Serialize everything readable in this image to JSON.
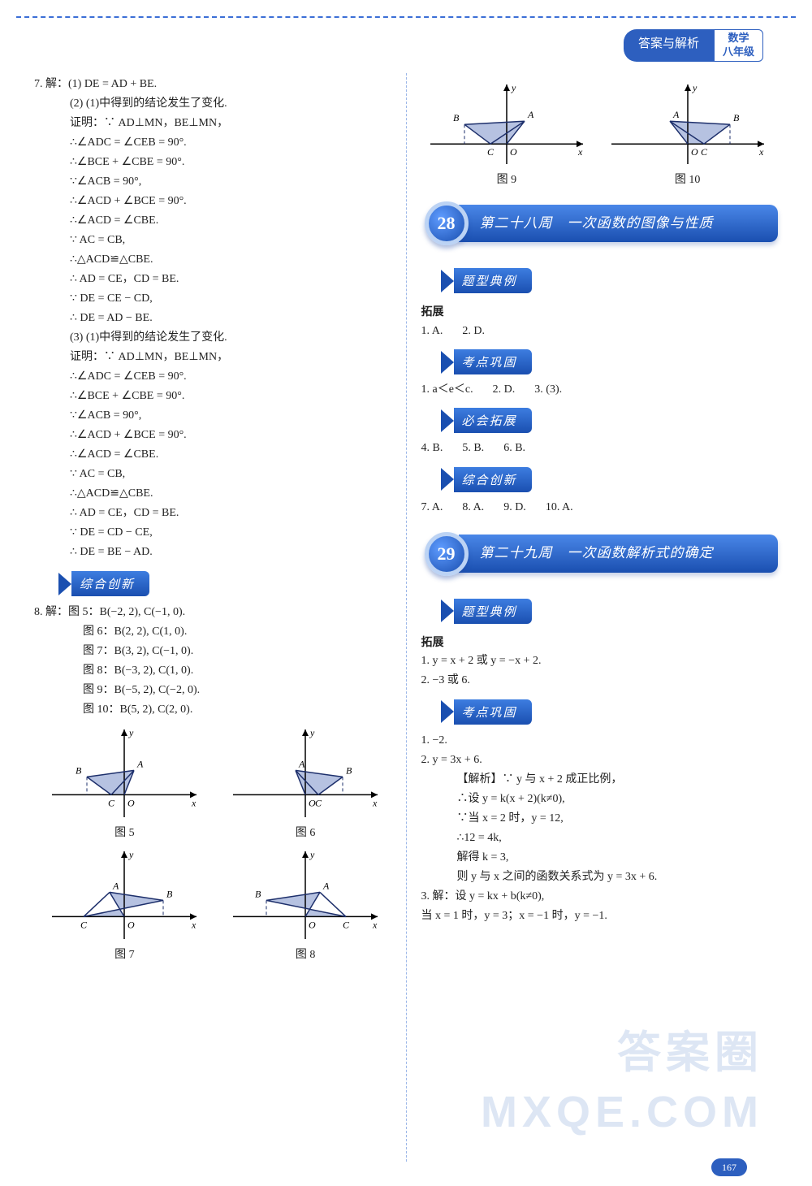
{
  "header": {
    "tab": "答案与解析",
    "subject": "数学",
    "grade": "八年级"
  },
  "page_number": "167",
  "watermarks": {
    "top": "答案圈",
    "bottom": "MXQE.COM"
  },
  "left": {
    "q7": {
      "head": "7.  解：(1) DE = AD + BE.",
      "p2": "(2) (1)中得到的结论发生了变化.",
      "proof2": [
        "证明：∵ AD⊥MN，BE⊥MN，",
        "∴∠ADC = ∠CEB = 90°.",
        "∴∠BCE + ∠CBE = 90°.",
        "∵∠ACB = 90°,",
        "∴∠ACD + ∠BCE = 90°.",
        "∴∠ACD = ∠CBE.",
        "∵ AC = CB,",
        "∴△ACD≌△CBE.",
        "∴ AD = CE，CD = BE.",
        "∵ DE = CE − CD,",
        "∴ DE = AD − BE."
      ],
      "p3": "(3) (1)中得到的结论发生了变化.",
      "proof3": [
        "证明：∵ AD⊥MN，BE⊥MN，",
        "∴∠ADC = ∠CEB = 90°.",
        "∴∠BCE + ∠CBE = 90°.",
        "∵∠ACB = 90°,",
        "∴∠ACD + ∠BCE = 90°.",
        "∴∠ACD = ∠CBE.",
        "∵ AC = CB,",
        "∴△ACD≌△CBE.",
        "∴ AD = CE，CD = BE.",
        "∵ DE = CD − CE,",
        "∴ DE = BE − AD."
      ]
    },
    "section_innov": "综合创新",
    "q8": {
      "head": "8.  解：图 5：B(−2, 2), C(−1, 0).",
      "lines": [
        "图 6：B(2, 2), C(1, 0).",
        "图 7：B(3, 2), C(−1, 0).",
        "图 8：B(−3, 2), C(1, 0).",
        "图 9：B(−5, 2), C(−2, 0).",
        "图 10：B(5, 2), C(2, 0)."
      ]
    },
    "figures": {
      "row1": [
        {
          "cap": "图 5",
          "A": [
            12,
            -30
          ],
          "B": [
            -46,
            -22
          ],
          "C": [
            -16,
            0
          ],
          "B_left": true
        },
        {
          "cap": "图 6",
          "A": [
            -12,
            -30
          ],
          "B": [
            46,
            -22
          ],
          "C": [
            16,
            0
          ],
          "B_left": false
        }
      ],
      "row2": [
        {
          "cap": "图 7",
          "A": [
            -18,
            -30
          ],
          "B": [
            48,
            -20
          ],
          "C": [
            -50,
            0
          ],
          "swap": true
        },
        {
          "cap": "图 8",
          "A": [
            18,
            -30
          ],
          "B": [
            -48,
            -20
          ],
          "C": [
            50,
            0
          ],
          "swap": true
        }
      ]
    }
  },
  "right": {
    "top_figs": [
      {
        "cap": "图 9",
        "A": [
          22,
          -28
        ],
        "B": [
          -52,
          -24
        ],
        "C": [
          -20,
          0
        ]
      },
      {
        "cap": "图 10",
        "A": [
          -22,
          -28
        ],
        "B": [
          52,
          -24
        ],
        "C": [
          20,
          0
        ]
      }
    ],
    "week28": {
      "num": "28",
      "title": "第二十八周　一次函数的图像与性质",
      "s1": {
        "tag": "题型典例",
        "sub": "拓展",
        "ans": [
          "1.  A.",
          "2.  D."
        ]
      },
      "s2": {
        "tag": "考点巩固",
        "ans": [
          "1.  a＜e＜c.",
          "2.  D.",
          "3.  (3)."
        ]
      },
      "s3": {
        "tag": "必会拓展",
        "ans": [
          "4.  B.",
          "5.  B.",
          "6.  B."
        ]
      },
      "s4": {
        "tag": "综合创新",
        "ans": [
          "7.  A.",
          "8.  A.",
          "9.  D.",
          "10.  A."
        ]
      }
    },
    "week29": {
      "num": "29",
      "title": "第二十九周　一次函数解析式的确定",
      "s1": {
        "tag": "题型典例",
        "sub": "拓展",
        "lines": [
          "1.  y = x + 2 或 y = −x + 2.",
          "2.  −3 或 6."
        ]
      },
      "s2": {
        "tag": "考点巩固",
        "lines": [
          "1.  −2.",
          "2.  y = 3x + 6.",
          "【解析】∵ y 与 x + 2 成正比例，",
          "∴设 y = k(x + 2)(k≠0),",
          "∵当 x = 2 时，y = 12,",
          "∴12 = 4k,",
          "解得 k = 3,",
          "则 y 与 x 之间的函数关系式为 y = 3x + 6.",
          "3.  解：设 y = kx + b(k≠0),",
          "当 x = 1 时，y = 3；x = −1 时，y = −1."
        ]
      }
    }
  },
  "fig_style": {
    "axis_color": "#000000",
    "line_color": "#1d2f6b",
    "fill_color": "#7a90c8",
    "dash": "4,3",
    "stroke_w": 1.5
  }
}
